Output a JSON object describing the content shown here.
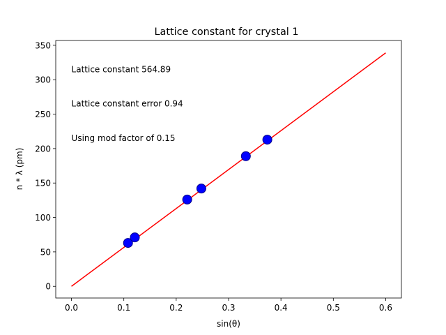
{
  "chart_data": {
    "type": "scatter",
    "title": "Lattice constant for crystal 1",
    "xlabel": "sin(θ)",
    "ylabel": "n * λ (pm)",
    "xlim": [
      -0.03,
      0.63
    ],
    "ylim": [
      -17,
      357
    ],
    "x_ticks": [
      0.0,
      0.1,
      0.2,
      0.3,
      0.4,
      0.5,
      0.6
    ],
    "x_tick_labels": [
      "0.0",
      "0.1",
      "0.2",
      "0.3",
      "0.4",
      "0.5",
      "0.6"
    ],
    "y_ticks": [
      0,
      50,
      100,
      150,
      200,
      250,
      300,
      350
    ],
    "y_tick_labels": [
      "0",
      "50",
      "100",
      "150",
      "200",
      "250",
      "300",
      "350"
    ],
    "grid": false,
    "series": [
      {
        "kind": "scatter",
        "color": "#0000ff",
        "edge_color": "#00008b",
        "points": [
          {
            "x": 0.108,
            "y": 63
          },
          {
            "x": 0.121,
            "y": 71
          },
          {
            "x": 0.221,
            "y": 126
          },
          {
            "x": 0.248,
            "y": 142
          },
          {
            "x": 0.333,
            "y": 189
          },
          {
            "x": 0.374,
            "y": 213
          }
        ]
      },
      {
        "kind": "line",
        "color": "#ff0000",
        "points": [
          {
            "x": 0.0,
            "y": 0
          },
          {
            "x": 0.6,
            "y": 339
          }
        ]
      }
    ],
    "annotations": [
      {
        "text": "Lattice constant 564.89",
        "x": 0.0,
        "y": 308
      },
      {
        "text": "Lattice constant error 0.94",
        "x": 0.0,
        "y": 258
      },
      {
        "text": "Using mod factor of 0.15",
        "x": 0.0,
        "y": 208
      }
    ]
  }
}
